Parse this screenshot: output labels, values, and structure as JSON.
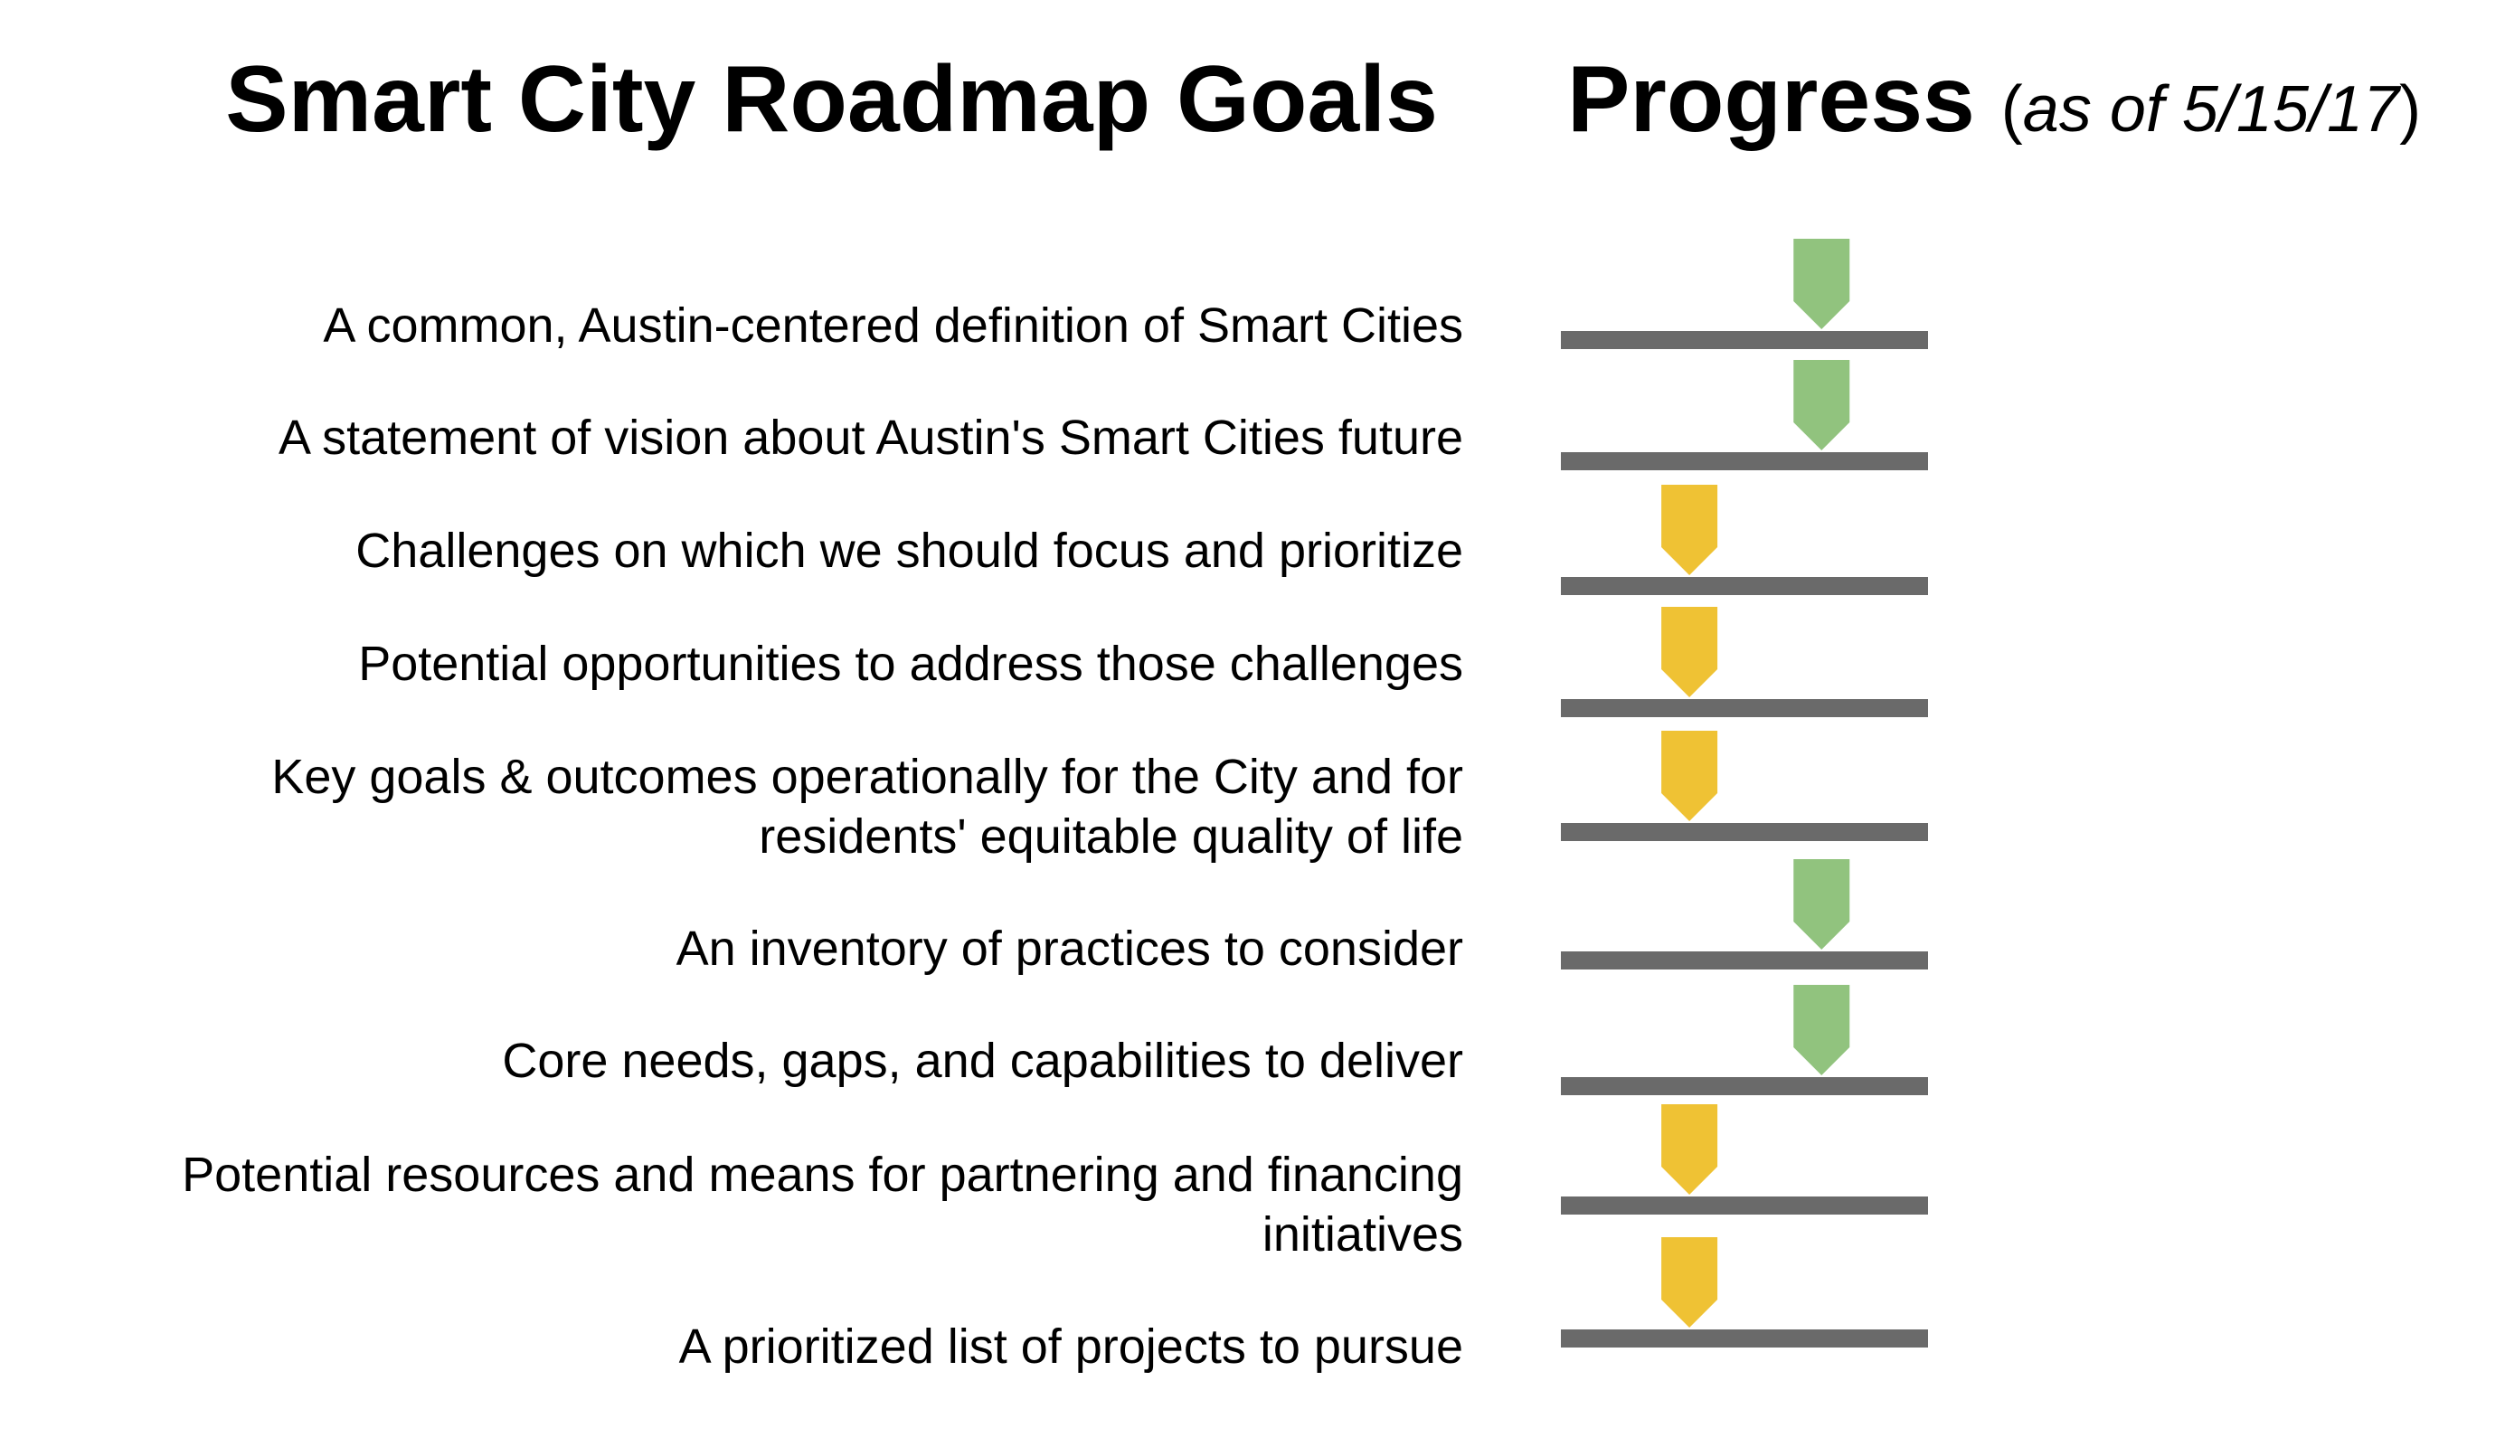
{
  "header": {
    "goals_title": "Smart City Roadmap Goals",
    "progress_title": "Progress",
    "progress_note_open": "(",
    "progress_note_text": "as of 5/15/17",
    "progress_note_close": ")"
  },
  "colors": {
    "track": "#6a6a6a",
    "complete": "#91c37e",
    "in_progress": "#efc234",
    "text": "#000000",
    "background": "#ffffff"
  },
  "chart_data": {
    "type": "bar",
    "categories": [
      "A common, Austin-centered definition of Smart Cities",
      "A statement of vision about Austin's Smart Cities future",
      "Challenges on which we should focus and prioritize",
      "Potential opportunities to address those challenges",
      "Key goals & outcomes operationally for the City and for residents' equitable quality of life",
      "An inventory of practices to consider",
      "Core needs, gaps, and capabilities to deliver",
      "Potential resources and means for partnering and financing initiatives",
      "A prioritized list of projects to pursue"
    ],
    "values": [
      0.71,
      0.71,
      0.35,
      0.35,
      0.35,
      0.71,
      0.71,
      0.35,
      0.35
    ],
    "status": [
      "complete",
      "complete",
      "in_progress",
      "in_progress",
      "in_progress",
      "complete",
      "complete",
      "in_progress",
      "in_progress"
    ],
    "ylim": [
      0,
      1
    ],
    "title": "",
    "xlabel": "",
    "ylabel": ""
  }
}
